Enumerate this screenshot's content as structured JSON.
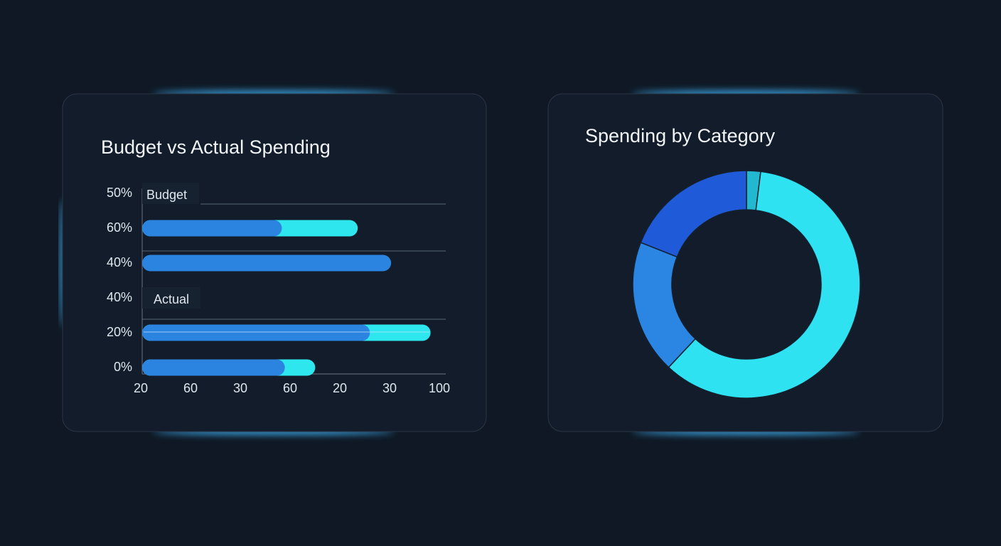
{
  "chart_data": [
    {
      "type": "bar",
      "title": "Budget vs Actual Spending",
      "categories": [
        "50%",
        "60%",
        "40%",
        "40%",
        "20%",
        "0%"
      ],
      "annotations": [
        "Budget",
        "Actual"
      ],
      "x_labels": [
        "20",
        "60",
        "30",
        "60",
        "20",
        "30",
        "100"
      ],
      "xlim": [
        0,
        100
      ],
      "stacked": true,
      "series": [
        {
          "color": "#2a84e0",
          "values": [
            null,
            46,
            82,
            null,
            75,
            47
          ]
        },
        {
          "color": "#2ee6ee",
          "values": [
            null,
            25,
            null,
            null,
            20,
            10
          ]
        }
      ]
    },
    {
      "type": "donut",
      "title": "Spending by Category",
      "values": [
        2,
        60,
        19,
        19
      ],
      "colors": [
        "#22b8d0",
        "#2ee2f2",
        "#2a86e2",
        "#1f5ad8"
      ]
    }
  ]
}
